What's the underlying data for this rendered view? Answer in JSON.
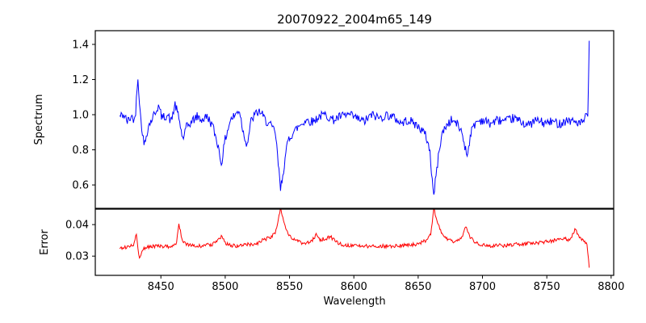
{
  "figure": {
    "title": "20070922_2004m65_149",
    "background_color": "#ffffff",
    "axis_color": "#000000"
  },
  "x_axis": {
    "label": "Wavelength",
    "ticks": [
      {
        "value": 8450,
        "label": "8450"
      },
      {
        "value": 8500,
        "label": "8500"
      },
      {
        "value": 8550,
        "label": "8550"
      },
      {
        "value": 8600,
        "label": "8600"
      },
      {
        "value": 8650,
        "label": "8650"
      },
      {
        "value": 8700,
        "label": "8700"
      },
      {
        "value": 8750,
        "label": "8750"
      },
      {
        "value": 8800,
        "label": "8800"
      }
    ]
  },
  "chart_data": [
    {
      "type": "line",
      "panel": "spectrum",
      "title": "20070922_2004m65_149",
      "ylabel": "Spectrum",
      "xlabel": "Wavelength",
      "legend": "none",
      "grid": false,
      "line_color": "#0000ff",
      "xlim": [
        8399,
        8802
      ],
      "ylim": [
        0.467,
        1.478
      ],
      "x_data_range": [
        8418,
        8783
      ],
      "yticks": [
        {
          "value": 0.6,
          "label": "0.6"
        },
        {
          "value": 0.8,
          "label": "0.8"
        },
        {
          "value": 1.0,
          "label": "1.0"
        },
        {
          "value": 1.2,
          "label": "1.2"
        },
        {
          "value": 1.4,
          "label": "1.4"
        }
      ],
      "noise_amplitude": 0.026,
      "n_points": 620,
      "anchors": [
        [
          8418,
          0.99
        ],
        [
          8421,
          1.0
        ],
        [
          8424,
          0.96
        ],
        [
          8427,
          0.99
        ],
        [
          8430,
          0.97
        ],
        [
          8432,
          1.23
        ],
        [
          8434,
          1.0
        ],
        [
          8437,
          0.82
        ],
        [
          8440,
          0.93
        ],
        [
          8444,
          0.99
        ],
        [
          8448,
          1.05
        ],
        [
          8451,
          0.98
        ],
        [
          8455,
          1.0
        ],
        [
          8458,
          0.96
        ],
        [
          8461,
          1.06
        ],
        [
          8464,
          0.98
        ],
        [
          8467,
          0.86
        ],
        [
          8470,
          0.93
        ],
        [
          8474,
          0.96
        ],
        [
          8478,
          0.99
        ],
        [
          8482,
          0.97
        ],
        [
          8486,
          0.99
        ],
        [
          8490,
          0.94
        ],
        [
          8494,
          0.84
        ],
        [
          8497,
          0.72
        ],
        [
          8500,
          0.86
        ],
        [
          8504,
          0.97
        ],
        [
          8508,
          1.0
        ],
        [
          8511,
          1.03
        ],
        [
          8514,
          0.9
        ],
        [
          8517,
          0.83
        ],
        [
          8520,
          0.96
        ],
        [
          8523,
          1.0
        ],
        [
          8527,
          1.02
        ],
        [
          8531,
          0.97
        ],
        [
          8535,
          0.94
        ],
        [
          8539,
          0.9
        ],
        [
          8543,
          0.575
        ],
        [
          8546,
          0.72
        ],
        [
          8549,
          0.86
        ],
        [
          8553,
          0.9
        ],
        [
          8558,
          0.94
        ],
        [
          8563,
          0.97
        ],
        [
          8568,
          0.96
        ],
        [
          8573,
          0.99
        ],
        [
          8578,
          1.0
        ],
        [
          8584,
          0.97
        ],
        [
          8590,
          0.99
        ],
        [
          8596,
          1.0
        ],
        [
          8602,
          0.98
        ],
        [
          8608,
          0.96
        ],
        [
          8614,
          1.0
        ],
        [
          8620,
          0.98
        ],
        [
          8626,
          1.0
        ],
        [
          8632,
          0.98
        ],
        [
          8637,
          0.95
        ],
        [
          8642,
          0.97
        ],
        [
          8647,
          0.95
        ],
        [
          8652,
          0.92
        ],
        [
          8656,
          0.88
        ],
        [
          8659,
          0.8
        ],
        [
          8662,
          0.535
        ],
        [
          8665,
          0.72
        ],
        [
          8668,
          0.88
        ],
        [
          8672,
          0.94
        ],
        [
          8676,
          0.97
        ],
        [
          8680,
          0.95
        ],
        [
          8684,
          0.9
        ],
        [
          8688,
          0.765
        ],
        [
          8691,
          0.9
        ],
        [
          8695,
          0.96
        ],
        [
          8700,
          0.97
        ],
        [
          8706,
          0.95
        ],
        [
          8712,
          0.97
        ],
        [
          8718,
          0.96
        ],
        [
          8724,
          0.98
        ],
        [
          8730,
          0.96
        ],
        [
          8736,
          0.94
        ],
        [
          8742,
          0.97
        ],
        [
          8748,
          0.95
        ],
        [
          8754,
          0.96
        ],
        [
          8760,
          0.95
        ],
        [
          8766,
          0.97
        ],
        [
          8772,
          0.96
        ],
        [
          8777,
          0.95
        ],
        [
          8780,
          0.98
        ],
        [
          8782,
          1.0
        ],
        [
          8783,
          1.42
        ]
      ]
    },
    {
      "type": "line",
      "panel": "error",
      "ylabel": "Error",
      "xlabel": "Wavelength",
      "legend": "none",
      "grid": false,
      "line_color": "#ff0000",
      "xlim": [
        8399,
        8802
      ],
      "ylim": [
        0.0239,
        0.0449
      ],
      "x_data_range": [
        8418,
        8783
      ],
      "yticks": [
        {
          "value": 0.03,
          "label": "0.03"
        },
        {
          "value": 0.04,
          "label": "0.04"
        }
      ],
      "noise_amplitude": 0.0006,
      "n_points": 620,
      "anchors": [
        [
          8418,
          0.0325
        ],
        [
          8422,
          0.0328
        ],
        [
          8426,
          0.0332
        ],
        [
          8429,
          0.0335
        ],
        [
          8431,
          0.037
        ],
        [
          8433,
          0.029
        ],
        [
          8436,
          0.0322
        ],
        [
          8440,
          0.033
        ],
        [
          8446,
          0.0332
        ],
        [
          8452,
          0.033
        ],
        [
          8458,
          0.0332
        ],
        [
          8462,
          0.0335
        ],
        [
          8464,
          0.0405
        ],
        [
          8467,
          0.0342
        ],
        [
          8472,
          0.0334
        ],
        [
          8478,
          0.0331
        ],
        [
          8484,
          0.0333
        ],
        [
          8490,
          0.0338
        ],
        [
          8494,
          0.035
        ],
        [
          8497,
          0.036
        ],
        [
          8500,
          0.0342
        ],
        [
          8505,
          0.0333
        ],
        [
          8510,
          0.0332
        ],
        [
          8515,
          0.0335
        ],
        [
          8520,
          0.0338
        ],
        [
          8525,
          0.0341
        ],
        [
          8530,
          0.0352
        ],
        [
          8535,
          0.036
        ],
        [
          8539,
          0.0372
        ],
        [
          8543,
          0.0452
        ],
        [
          8546,
          0.0405
        ],
        [
          8549,
          0.0368
        ],
        [
          8553,
          0.0352
        ],
        [
          8558,
          0.0344
        ],
        [
          8563,
          0.034
        ],
        [
          8567,
          0.0346
        ],
        [
          8571,
          0.0368
        ],
        [
          8574,
          0.0352
        ],
        [
          8578,
          0.0356
        ],
        [
          8582,
          0.036
        ],
        [
          8586,
          0.0346
        ],
        [
          8591,
          0.0337
        ],
        [
          8597,
          0.0333
        ],
        [
          8604,
          0.0331
        ],
        [
          8612,
          0.0332
        ],
        [
          8620,
          0.0331
        ],
        [
          8628,
          0.0332
        ],
        [
          8635,
          0.0333
        ],
        [
          8642,
          0.0334
        ],
        [
          8648,
          0.0338
        ],
        [
          8653,
          0.0344
        ],
        [
          8657,
          0.0352
        ],
        [
          8660,
          0.0372
        ],
        [
          8662,
          0.0452
        ],
        [
          8665,
          0.0408
        ],
        [
          8668,
          0.0372
        ],
        [
          8672,
          0.0355
        ],
        [
          8677,
          0.0346
        ],
        [
          8682,
          0.0352
        ],
        [
          8685,
          0.0368
        ],
        [
          8687,
          0.04
        ],
        [
          8690,
          0.0362
        ],
        [
          8694,
          0.0344
        ],
        [
          8699,
          0.0335
        ],
        [
          8705,
          0.0332
        ],
        [
          8712,
          0.0334
        ],
        [
          8719,
          0.0333
        ],
        [
          8726,
          0.0337
        ],
        [
          8733,
          0.0339
        ],
        [
          8740,
          0.0342
        ],
        [
          8747,
          0.0344
        ],
        [
          8753,
          0.0347
        ],
        [
          8759,
          0.0352
        ],
        [
          8764,
          0.0355
        ],
        [
          8768,
          0.0352
        ],
        [
          8772,
          0.0385
        ],
        [
          8775,
          0.0362
        ],
        [
          8778,
          0.0348
        ],
        [
          8781,
          0.0342
        ],
        [
          8783,
          0.0262
        ]
      ]
    }
  ]
}
